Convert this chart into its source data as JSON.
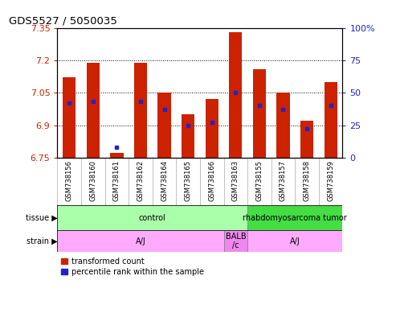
{
  "title": "GDS5527 / 5050035",
  "samples": [
    "GSM738156",
    "GSM738160",
    "GSM738161",
    "GSM738162",
    "GSM738164",
    "GSM738165",
    "GSM738166",
    "GSM738163",
    "GSM738155",
    "GSM738157",
    "GSM738158",
    "GSM738159"
  ],
  "bar_bottom": 6.75,
  "bar_tops": [
    7.12,
    7.19,
    6.77,
    7.19,
    7.05,
    6.95,
    7.02,
    7.33,
    7.16,
    7.05,
    6.92,
    7.1
  ],
  "percentile_values": [
    42,
    43,
    8,
    43,
    37,
    25,
    27,
    50,
    40,
    37,
    22,
    40
  ],
  "ylim_left": [
    6.75,
    7.35
  ],
  "ylim_right": [
    0,
    100
  ],
  "yticks_left": [
    6.75,
    6.9,
    7.05,
    7.2,
    7.35
  ],
  "yticks_right": [
    0,
    25,
    50,
    75,
    100
  ],
  "ytick_labels_left": [
    "6.75",
    "6.9",
    "7.05",
    "7.2",
    "7.35"
  ],
  "ytick_labels_right": [
    "0",
    "25",
    "50",
    "75",
    "100%"
  ],
  "bar_color": "#cc2200",
  "percentile_color": "#2222cc",
  "tissue_groups": [
    {
      "label": "control",
      "start": 0,
      "end": 8,
      "color": "#aaffaa"
    },
    {
      "label": "rhabdomyosarcoma tumor",
      "start": 8,
      "end": 12,
      "color": "#44dd44"
    }
  ],
  "strain_groups": [
    {
      "label": "A/J",
      "start": 0,
      "end": 7,
      "color": "#ffaaff"
    },
    {
      "label": "BALB\n/c",
      "start": 7,
      "end": 8,
      "color": "#ee88ee"
    },
    {
      "label": "A/J",
      "start": 8,
      "end": 12,
      "color": "#ffaaff"
    }
  ],
  "tissue_label": "tissue",
  "strain_label": "strain",
  "legend_red_label": "transformed count",
  "legend_blue_label": "percentile rank within the sample",
  "background_color": "#ffffff",
  "xtick_bg_color": "#cccccc",
  "xtick_sep_color": "#aaaaaa"
}
